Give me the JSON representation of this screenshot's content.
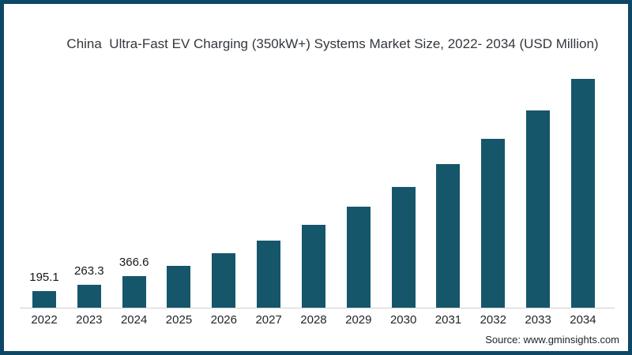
{
  "page": {
    "source_label": "Source: www.gminsights.com"
  },
  "colors": {
    "bar": "#15566b",
    "frame_border": "#0d4766",
    "axis_line": "#cfcfcf",
    "title_text": "#33383d",
    "label_text": "#15191c"
  },
  "chart_data": {
    "type": "bar",
    "title": "China  Ultra-Fast EV Charging (350kW+) Systems Market Size, 2022- 2034 (USD Million)",
    "categories": [
      "2022",
      "2023",
      "2024",
      "2025",
      "2026",
      "2027",
      "2028",
      "2029",
      "2030",
      "2031",
      "2032",
      "2033",
      "2034"
    ],
    "values": [
      195.1,
      263.3,
      366.6,
      490,
      635,
      785,
      965,
      1180,
      1410,
      1680,
      1970,
      2300,
      2670
    ],
    "data_labels": [
      "195.1",
      "263.3",
      "366.6",
      "",
      "",
      "",
      "",
      "",
      "",
      "",
      "",
      "",
      ""
    ],
    "xlabel": "",
    "ylabel": "",
    "ylim": [
      0,
      2800
    ],
    "grid": false,
    "legend": "none",
    "y_axis_visible": false,
    "baseline_axis_visible": true
  }
}
